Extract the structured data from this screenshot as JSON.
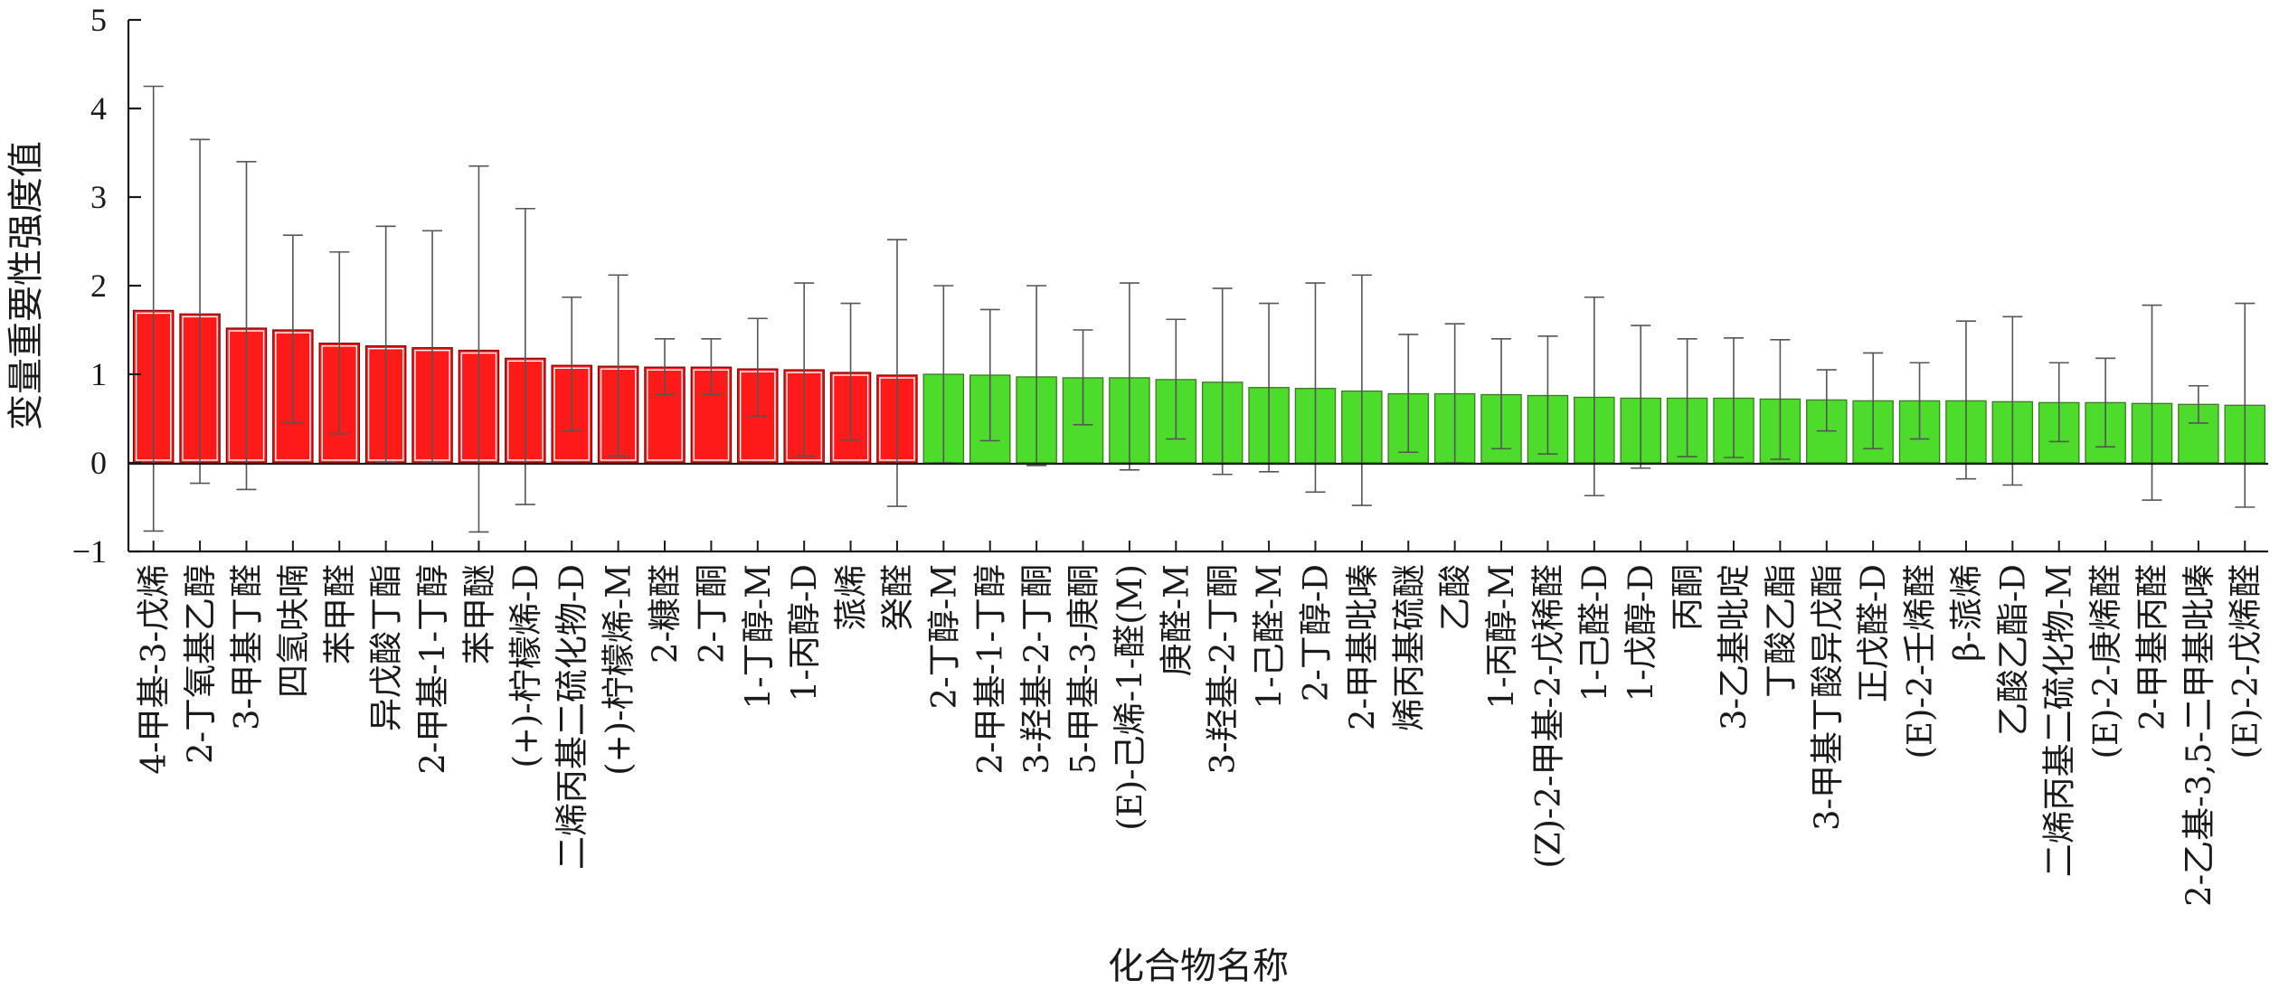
{
  "chart_data": {
    "type": "bar",
    "title": "",
    "xlabel": "化合物名称",
    "ylabel": "变量重要性强度值",
    "ylim": [
      -1,
      5
    ],
    "yticks": [
      "−1",
      "0",
      "1",
      "2",
      "3",
      "4",
      "5"
    ],
    "grid": false,
    "colors": {
      "high": "#ff1a1a",
      "low": "#4ddc2b",
      "error_bar": "#555555"
    },
    "categories": [
      "4-甲基-3-戊烯",
      "2-丁氧基乙醇",
      "3-甲基丁醛",
      "四氢呋喃",
      "苯甲醛",
      "异戊酸丁酯",
      "2-甲基-1-丁醇",
      "苯甲醚",
      "(+)-柠檬烯-D",
      "二烯丙基二硫化物-D",
      "(+)-柠檬烯-M",
      "2-糠醛",
      "2-丁酮",
      "1-丁醇-M",
      "1-丙醇-D",
      "蒎烯",
      "癸醛",
      "2-丁醇-M",
      "2-甲基-1-丁醇",
      "3-羟基-2-丁酮",
      "5-甲基-3-庚酮",
      "(E)-己烯-1-醛(M)",
      "庚醛-M",
      "3-羟基-2-丁酮",
      "1-己醛-M",
      "2-丁醇-D",
      "2-甲基吡嗪",
      "烯丙基硫醚",
      "乙酸",
      "1-丙醇-M",
      "(Z)-2-甲基-2-戊稀醛",
      "1-己醛-D",
      "1-戊醇-D",
      "丙酮",
      "3-乙基吡啶",
      "丁酸乙酯",
      "3-甲基丁酸异戊酯",
      "正戊醛-D",
      "(E)-2-壬烯醛",
      "β-蒎烯",
      "乙酸乙酯-D",
      "二烯丙基二硫化物-M",
      "(E)-2-庚烯醛",
      "2-甲基丙醛",
      "2-乙基-3,5-二甲基吡嗪",
      "(E)-2-戊烯醛"
    ],
    "series": [
      {
        "values": [
          1.72,
          1.68,
          1.52,
          1.5,
          1.35,
          1.32,
          1.3,
          1.27,
          1.18,
          1.1,
          1.09,
          1.08,
          1.08,
          1.06,
          1.05,
          1.02,
          0.99,
          1.0,
          0.99,
          0.97,
          0.96,
          0.96,
          0.94,
          0.91,
          0.85,
          0.84,
          0.81,
          0.78,
          0.78,
          0.77,
          0.76,
          0.74,
          0.73,
          0.73,
          0.73,
          0.72,
          0.71,
          0.7,
          0.7,
          0.7,
          0.69,
          0.68,
          0.68,
          0.67,
          0.66,
          0.65
        ],
        "error_low": [
          -0.77,
          -0.23,
          -0.3,
          0.45,
          0.33,
          0.0,
          0.0,
          -0.78,
          -0.47,
          0.36,
          0.08,
          0.77,
          0.77,
          0.53,
          0.08,
          0.26,
          -0.49,
          0.0,
          0.25,
          -0.03,
          0.43,
          -0.08,
          0.27,
          -0.13,
          -0.1,
          -0.33,
          -0.48,
          0.12,
          0.0,
          0.16,
          0.1,
          -0.37,
          -0.06,
          0.07,
          0.06,
          0.04,
          0.36,
          0.16,
          0.27,
          -0.18,
          -0.25,
          0.24,
          0.18,
          -0.42,
          0.45,
          -0.5
        ],
        "error_high": [
          4.25,
          3.65,
          3.4,
          2.57,
          2.38,
          2.67,
          2.62,
          3.35,
          2.87,
          1.87,
          2.12,
          1.4,
          1.4,
          1.63,
          2.03,
          1.8,
          2.52,
          2.0,
          1.73,
          2.0,
          1.5,
          2.03,
          1.62,
          1.97,
          1.8,
          2.03,
          2.12,
          1.45,
          1.57,
          1.4,
          1.43,
          1.87,
          1.55,
          1.4,
          1.41,
          1.39,
          1.05,
          1.24,
          1.13,
          1.6,
          1.65,
          1.13,
          1.18,
          1.78,
          0.87,
          1.8
        ],
        "group": [
          "high",
          "high",
          "high",
          "high",
          "high",
          "high",
          "high",
          "high",
          "high",
          "high",
          "high",
          "high",
          "high",
          "high",
          "high",
          "high",
          "high",
          "low",
          "low",
          "low",
          "low",
          "low",
          "low",
          "low",
          "low",
          "low",
          "low",
          "low",
          "low",
          "low",
          "low",
          "low",
          "low",
          "low",
          "low",
          "low",
          "low",
          "low",
          "low",
          "low",
          "low",
          "low",
          "low",
          "low",
          "low",
          "low"
        ]
      }
    ]
  }
}
